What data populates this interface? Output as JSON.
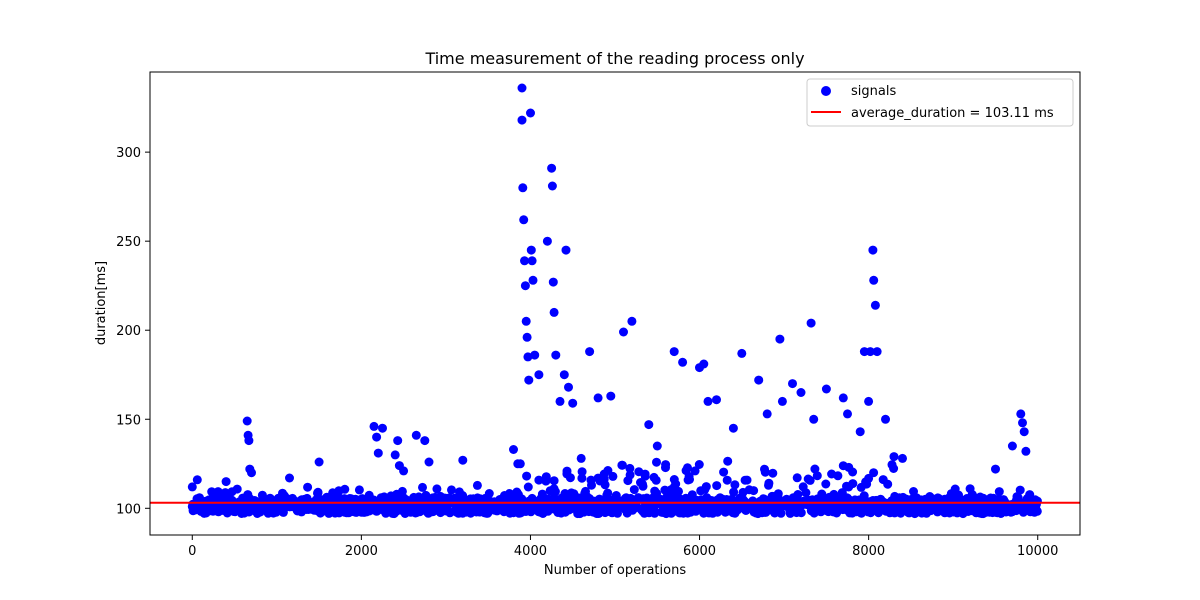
{
  "chart_data": {
    "type": "scatter",
    "title": "Time measurement of the reading process only",
    "xlabel": "Number of operations",
    "ylabel": "duration[ms]",
    "xlim": [
      -500,
      10500
    ],
    "ylim": [
      85,
      345
    ],
    "xticks": [
      0,
      2000,
      4000,
      6000,
      8000,
      10000
    ],
    "yticks": [
      100,
      150,
      200,
      250,
      300
    ],
    "grid": false,
    "legend_position": "top-right",
    "series": [
      {
        "name": "signals",
        "kind": "scatter",
        "color": "#0000ff",
        "x": [
          0,
          60,
          400,
          650,
          660,
          670,
          680,
          700,
          1150,
          1500,
          2150,
          2180,
          2200,
          2250,
          2400,
          2430,
          2450,
          2500,
          2650,
          2750,
          2800,
          3200,
          3800,
          3850,
          3880,
          3900,
          3900,
          3910,
          3920,
          3930,
          3940,
          3950,
          3960,
          3970,
          3980,
          4000,
          4010,
          4020,
          4030,
          4050,
          4100,
          4200,
          4250,
          4260,
          4270,
          4280,
          4300,
          4350,
          4400,
          4420,
          4450,
          4500,
          4600,
          4700,
          4800,
          4950,
          5100,
          5200,
          5400,
          5500,
          5700,
          5800,
          6000,
          6050,
          6100,
          6200,
          6400,
          6500,
          6700,
          6800,
          6950,
          6980,
          7100,
          7200,
          7320,
          7350,
          7500,
          7700,
          7750,
          7900,
          7950,
          8000,
          8020,
          8050,
          8060,
          8080,
          8100,
          8200,
          8300,
          8400,
          9200,
          9500,
          9700,
          9800,
          9820,
          9840,
          9860
        ],
        "y": [
          112,
          116,
          115,
          149,
          141,
          138,
          122,
          120,
          117,
          126,
          146,
          140,
          131,
          145,
          130,
          138,
          124,
          121,
          141,
          138,
          126,
          127,
          133,
          125,
          125,
          318,
          336,
          280,
          262,
          239,
          225,
          205,
          196,
          185,
          172,
          322,
          245,
          239,
          228,
          186,
          175,
          250,
          291,
          281,
          227,
          210,
          186,
          160,
          175,
          245,
          168,
          159,
          128,
          188,
          162,
          163,
          199,
          205,
          147,
          135,
          188,
          182,
          179,
          181,
          160,
          161,
          145,
          187,
          172,
          153,
          195,
          160,
          170,
          165,
          204,
          150,
          167,
          162,
          153,
          143,
          188,
          160,
          188,
          245,
          228,
          214,
          188,
          150,
          129,
          128,
          111,
          122,
          135,
          153,
          148,
          143,
          132
        ]
      },
      {
        "name": "average_duration = 103.11 ms",
        "kind": "line",
        "color": "#ff0000",
        "value": 103.11
      }
    ]
  }
}
